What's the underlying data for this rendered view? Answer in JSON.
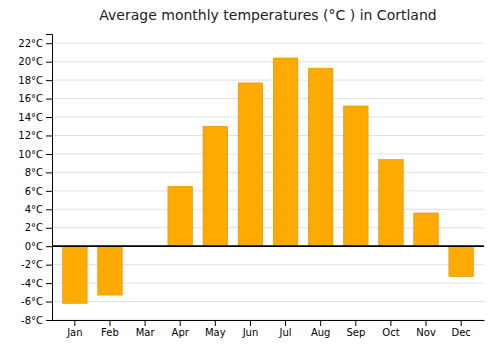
{
  "chart_data": {
    "type": "bar",
    "title": "Average monthly temperatures (°C ) in Cortland",
    "categories": [
      "Jan",
      "Feb",
      "Mar",
      "Apr",
      "May",
      "Jun",
      "Jul",
      "Aug",
      "Sep",
      "Oct",
      "Nov",
      "Dec"
    ],
    "values": [
      -6.2,
      -5.3,
      0.0,
      6.5,
      13.0,
      17.7,
      20.4,
      19.3,
      15.2,
      9.4,
      3.6,
      -3.3
    ],
    "color": "#FFAA00",
    "ylim": [
      -8,
      23
    ],
    "yticks": [
      {
        "value": -8,
        "label": "-8°C"
      },
      {
        "value": -6,
        "label": "-6°C"
      },
      {
        "value": -4,
        "label": "-4°C"
      },
      {
        "value": -2,
        "label": "-2°C"
      },
      {
        "value": 0,
        "label": "0°C"
      },
      {
        "value": 2,
        "label": "2°C"
      },
      {
        "value": 4,
        "label": "4°C"
      },
      {
        "value": 6,
        "label": "6°C"
      },
      {
        "value": 8,
        "label": "8°C"
      },
      {
        "value": 10,
        "label": "10°C"
      },
      {
        "value": 12,
        "label": "12°C"
      },
      {
        "value": 14,
        "label": "14°C"
      },
      {
        "value": 16,
        "label": "16°C"
      },
      {
        "value": 18,
        "label": "18°C"
      },
      {
        "value": 20,
        "label": "20°C"
      },
      {
        "value": 22,
        "label": "22°C"
      }
    ],
    "grid": true
  }
}
